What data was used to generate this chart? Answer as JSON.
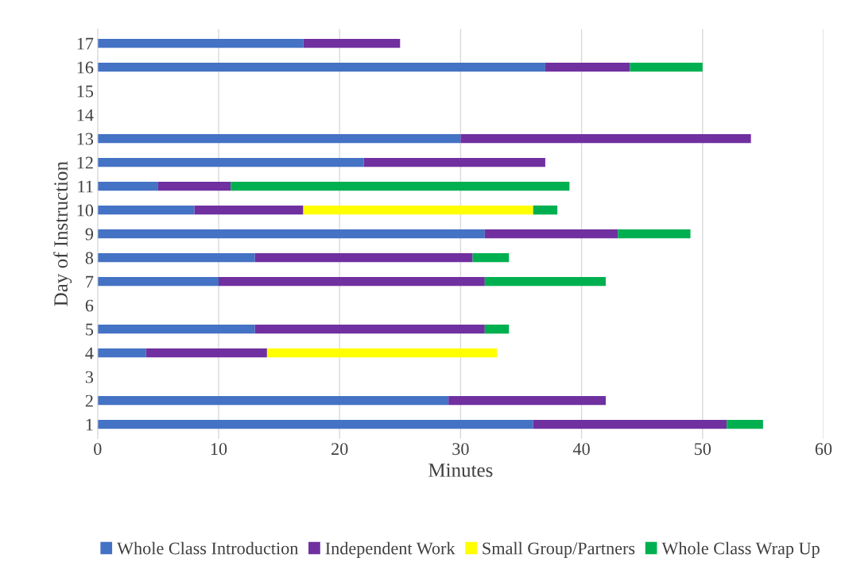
{
  "chart_data": {
    "type": "bar",
    "orientation": "horizontal",
    "stacked": true,
    "xlabel": "Minutes",
    "ylabel": "Day of Instruction",
    "categories": [
      "17",
      "16",
      "15",
      "14",
      "13",
      "12",
      "11",
      "10",
      "9",
      "8",
      "7",
      "6",
      "5",
      "4",
      "3",
      "2",
      "1"
    ],
    "series": [
      {
        "name": "Whole Class Introduction",
        "color": "#4472c4",
        "values": [
          17,
          37,
          null,
          null,
          30,
          22,
          5,
          8,
          32,
          13,
          10,
          null,
          13,
          4,
          null,
          29,
          36
        ]
      },
      {
        "name": "Independent Work",
        "color": "#7030a0",
        "values": [
          8,
          7,
          null,
          null,
          24,
          15,
          6,
          9,
          11,
          18,
          22,
          null,
          19,
          10,
          null,
          13,
          16
        ]
      },
      {
        "name": "Small Group/Partners",
        "color": "#ffff00",
        "values": [
          null,
          null,
          null,
          null,
          null,
          null,
          null,
          19,
          null,
          null,
          null,
          null,
          null,
          19,
          null,
          null,
          null
        ]
      },
      {
        "name": "Whole Class Wrap Up",
        "color": "#00b050",
        "values": [
          null,
          6,
          null,
          null,
          null,
          null,
          28,
          2,
          6,
          3,
          10,
          null,
          2,
          null,
          null,
          null,
          3
        ]
      }
    ],
    "xlim": [
      0,
      60
    ],
    "xticks": [
      0,
      10,
      20,
      30,
      40,
      50,
      60
    ],
    "grid": "x",
    "legend": "bottom"
  }
}
